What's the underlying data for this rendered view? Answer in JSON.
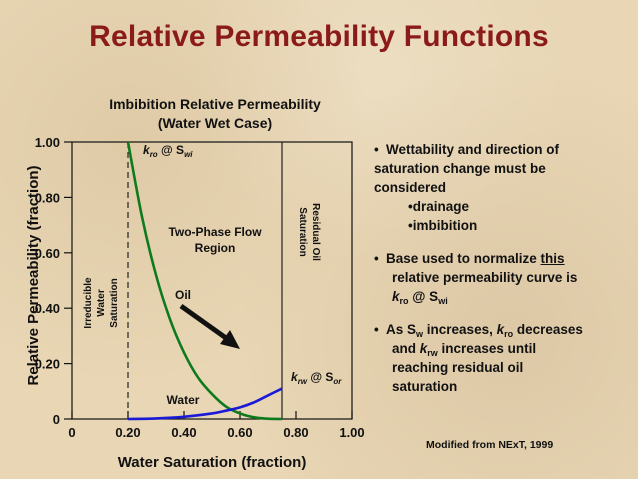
{
  "slide_title": "Relative Permeability Functions",
  "chart_title": {
    "line1": "Imbibition Relative Permeability",
    "line2": "(Water Wet Case)"
  },
  "credit": "Modified from NExT, 1999",
  "bullets": {
    "b1_line1": "Wettability and direction of",
    "b1_line2": "saturation change must be",
    "b1_line3": "considered",
    "b1_sub1": "drainage",
    "b1_sub2": "imbibition",
    "b2_line1_pre": "Base used to normalize ",
    "b2_line1_u": "this",
    "b2_line2": "relative permeability curve is",
    "b2_k": "k",
    "b2_ro": "ro",
    "b2_at": " @ S",
    "b2_wi": "wi",
    "b3_pre": "As S",
    "b3_w": "w",
    "b3_mid": " increases, ",
    "b3_k": "k",
    "b3_ro": "ro",
    "b3_dec": " decreases",
    "b3_l2_pre": "and ",
    "b3_l2_k": "k",
    "b3_l2_rw": "rw",
    "b3_l2_post": " increases until",
    "b3_l3": "reaching residual oil",
    "b3_l4": "saturation"
  },
  "chart_data": {
    "type": "line",
    "title": "Imbibition Relative Permeability (Water Wet Case)",
    "xlabel": "Water Saturation (fraction)",
    "ylabel": "Relative Permeability (fraction)",
    "xlim": [
      0,
      1.0
    ],
    "ylim": [
      0,
      1.0
    ],
    "x_ticks": [
      "0",
      "0.20",
      "0.40",
      "0.60",
      "0.80",
      "1.00"
    ],
    "y_ticks": [
      "0",
      "0.20",
      "0.40",
      "0.60",
      "0.80",
      "1.00"
    ],
    "swi": 0.2,
    "sor_boundary": 0.75,
    "series": [
      {
        "name": "Oil",
        "color": "#0e7a1e",
        "x": [
          0.2,
          0.25,
          0.3,
          0.35,
          0.4,
          0.45,
          0.5,
          0.55,
          0.6,
          0.65,
          0.7,
          0.75
        ],
        "y": [
          1.0,
          0.73,
          0.52,
          0.36,
          0.24,
          0.15,
          0.09,
          0.045,
          0.02,
          0.006,
          0.001,
          0.0
        ]
      },
      {
        "name": "Water",
        "color": "#1a1ad6",
        "x": [
          0.2,
          0.3,
          0.4,
          0.5,
          0.55,
          0.6,
          0.65,
          0.7,
          0.75
        ],
        "y": [
          0.0,
          0.002,
          0.008,
          0.02,
          0.03,
          0.042,
          0.06,
          0.085,
          0.11
        ]
      }
    ],
    "annotations": {
      "kro_prefix": "k",
      "kro_sub": "ro",
      "kro_at": " @ S",
      "kro_sub2": "wi",
      "krw_prefix": "k",
      "krw_sub": "rw",
      "krw_at": " @ S",
      "krw_sub2": "or",
      "two_phase_1": "Two-Phase Flow",
      "two_phase_2": "Region",
      "oil_label": "Oil",
      "water_label": "Water",
      "irreducible": [
        "Irreducible",
        "Water",
        "Saturation"
      ],
      "residual": [
        "Residual Oil",
        "Saturation"
      ]
    }
  }
}
